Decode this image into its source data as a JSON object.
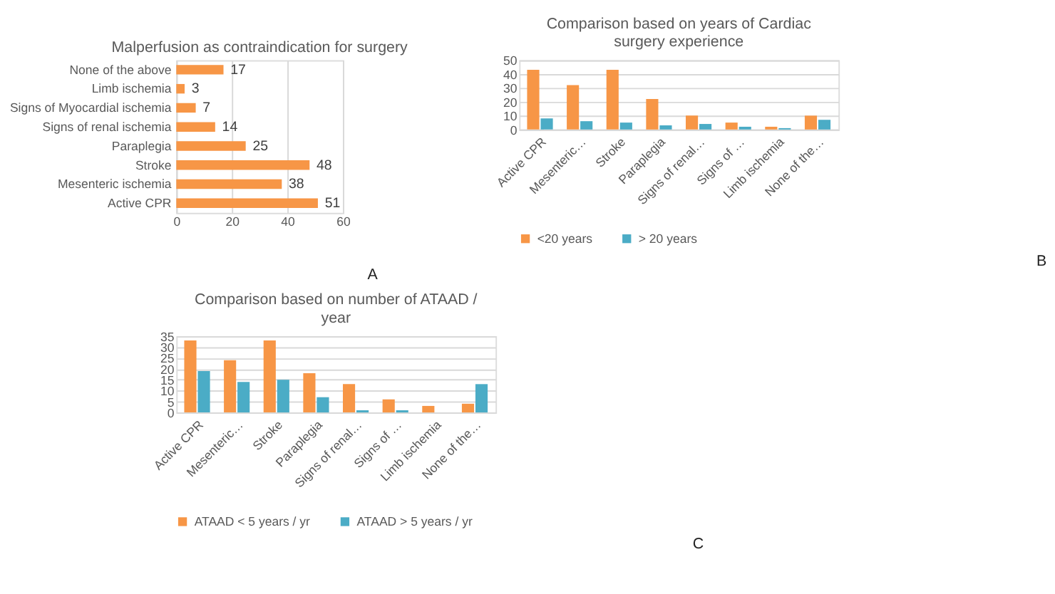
{
  "chart_data": [
    {
      "type": "bar",
      "orientation": "horizontal",
      "title": "Malperfusion as contraindication for surgery",
      "categories": [
        "None of the above",
        "Limb ischemia",
        "Signs of Myocardial ischemia",
        "Signs of renal ischemia",
        "Paraplegia",
        "Stroke",
        "Mesenteric ischemia",
        "Active CPR"
      ],
      "values": [
        17,
        3,
        7,
        14,
        25,
        48,
        38,
        51
      ],
      "color": "#f79646",
      "xlim": [
        0,
        60
      ],
      "xticks": [
        0,
        20,
        40,
        60
      ],
      "grid": "x",
      "data_labels": true,
      "legend": false,
      "annotations": [
        "A"
      ]
    },
    {
      "type": "bar",
      "title": "Comparison based on years of Cardiac surgery experience",
      "categories": [
        "Active CPR",
        "Mesenteric…",
        "Stroke",
        "Paraplegia",
        "Signs of renal…",
        "Signs of …",
        "Limb ischemia",
        "None of the…"
      ],
      "series": [
        {
          "name": "<20 years",
          "color": "#f79646",
          "values": [
            43,
            32,
            43,
            22,
            10,
            5,
            2,
            10
          ]
        },
        {
          "name": "> 20 years",
          "color": "#4bacc6",
          "values": [
            8,
            6,
            5,
            3,
            4,
            2,
            1,
            7
          ]
        }
      ],
      "ylim": [
        0,
        50
      ],
      "yticks": [
        0,
        10,
        20,
        30,
        40,
        50
      ],
      "grid": "y",
      "legend": "bottom",
      "annotations": [
        "B"
      ]
    },
    {
      "type": "bar",
      "title": "Comparison based on number of ATAAD / year",
      "categories": [
        "Active CPR",
        "Mesenteric…",
        "Stroke",
        "Paraplegia",
        "Signs of renal…",
        "Signs of …",
        "Limb ischemia",
        "None of the…"
      ],
      "series": [
        {
          "name": "ATAAD < 5 years / yr",
          "color": "#f79646",
          "values": [
            33,
            24,
            33,
            18,
            13,
            6,
            3,
            4
          ]
        },
        {
          "name": "ATAAD > 5 years / yr",
          "color": "#4bacc6",
          "values": [
            19,
            14,
            15,
            7,
            1,
            1,
            0,
            13
          ]
        }
      ],
      "ylim": [
        0,
        35
      ],
      "yticks": [
        0,
        5,
        10,
        15,
        20,
        25,
        30,
        35
      ],
      "grid": "y",
      "legend": "bottom",
      "annotations": [
        "C"
      ]
    }
  ]
}
